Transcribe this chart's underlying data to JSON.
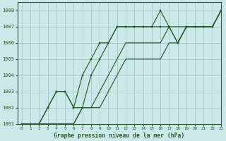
{
  "title": "Graphe pression niveau de la mer (hPa)",
  "bg_color": "#cce8e8",
  "grid_color": "#a8c8c8",
  "line_color": "#2d5a2d",
  "marker_color": "#2d5a2d",
  "xlim": [
    -0.5,
    23
  ],
  "ylim": [
    1001,
    1008.5
  ],
  "xticks": [
    0,
    1,
    2,
    3,
    4,
    5,
    6,
    7,
    8,
    9,
    10,
    11,
    12,
    13,
    14,
    15,
    16,
    17,
    18,
    19,
    20,
    21,
    22,
    23
  ],
  "yticks": [
    1001,
    1002,
    1003,
    1004,
    1005,
    1006,
    1007,
    1008
  ],
  "series": [
    [
      1001,
      1001,
      1001,
      1002,
      1003,
      1003,
      1002,
      1004,
      1005,
      1006,
      1006,
      1007,
      1007,
      1007,
      1007,
      1007,
      1008,
      1007,
      1006,
      1007,
      1007,
      1007,
      1007,
      1008
    ],
    [
      1001,
      1001,
      1001,
      1002,
      1003,
      1003,
      1002,
      1002,
      1004,
      1005,
      1006,
      1007,
      1007,
      1007,
      1007,
      1007,
      1007,
      1007,
      1006,
      1007,
      1007,
      1007,
      1007,
      1008
    ],
    [
      1001,
      1001,
      1001,
      1001,
      1001,
      1001,
      1001,
      1002,
      1002,
      1003,
      1004,
      1005,
      1006,
      1006,
      1006,
      1006,
      1006,
      1007,
      1007,
      1007,
      1007,
      1007,
      1007,
      1008
    ],
    [
      1001,
      1001,
      1001,
      1001,
      1001,
      1001,
      1001,
      1002,
      1002,
      1002,
      1003,
      1004,
      1005,
      1005,
      1005,
      1005,
      1005,
      1006,
      1006,
      1007,
      1007,
      1007,
      1007,
      1008
    ]
  ],
  "series_markers": [
    true,
    true,
    false,
    false
  ]
}
